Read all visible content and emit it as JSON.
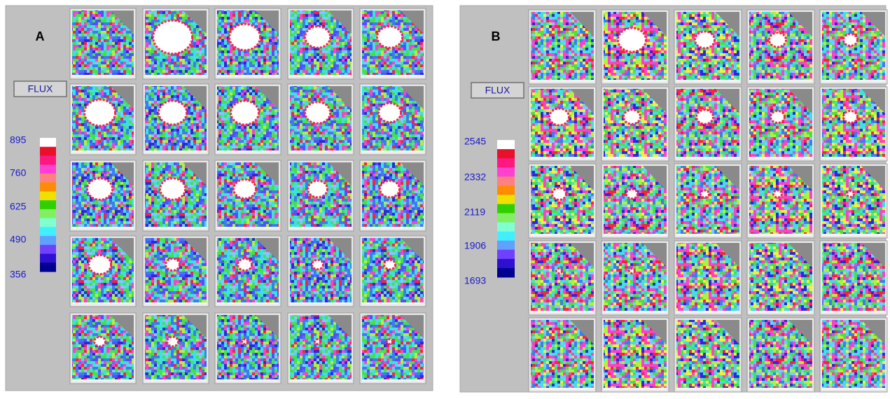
{
  "panels": [
    {
      "label": "A",
      "button": "FLUX",
      "scale": [
        895,
        760,
        625,
        490,
        356
      ]
    },
    {
      "label": "B",
      "button": "FLUX",
      "scale": [
        2545,
        2332,
        2119,
        1906,
        1693
      ]
    }
  ]
}
